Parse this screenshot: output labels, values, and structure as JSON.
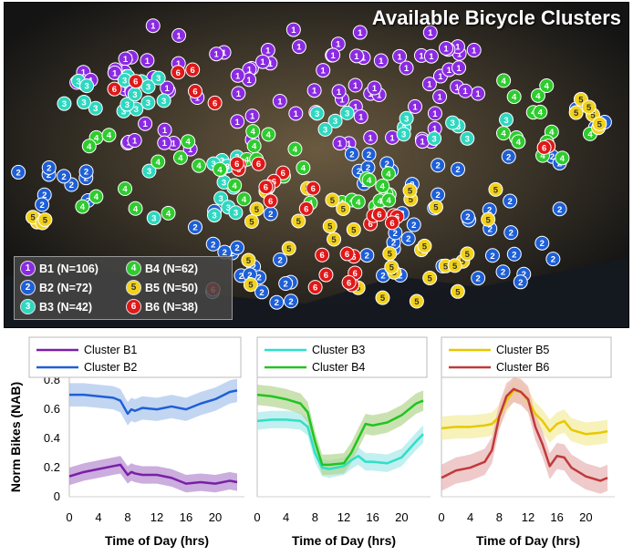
{
  "map": {
    "title": "Available Bicycle Clusters",
    "clusters": [
      {
        "id": "1",
        "label": "B1 (N=106)",
        "color": "#8a2be2"
      },
      {
        "id": "2",
        "label": "B2 (N=72)",
        "color": "#1e5fd6"
      },
      {
        "id": "3",
        "label": "B3 (N=42)",
        "color": "#2ed8c0"
      },
      {
        "id": "4",
        "label": "B4 (N=62)",
        "color": "#2ecc2e"
      },
      {
        "id": "5",
        "label": "B5 (N=50)",
        "color": "#f2d21c"
      },
      {
        "id": "6",
        "label": "B6 (N=38)",
        "color": "#e01818"
      }
    ]
  },
  "chart_data": [
    {
      "type": "line",
      "x": [
        0,
        2,
        4,
        6,
        7,
        8,
        8.5,
        9,
        10,
        12,
        14,
        16,
        18,
        20,
        22,
        23
      ],
      "xticks": [
        "0",
        "4",
        "8",
        "12",
        "16",
        "20"
      ],
      "xlabel": "Time of Day (hrs)",
      "ylabel": "Norm Bikes (NAB)",
      "yticks": [
        "0",
        "0.2",
        "0.4",
        "0.6",
        "0.8"
      ],
      "ylim": [
        0,
        0.82
      ],
      "series": [
        {
          "name": "Cluster B1",
          "color": "#7a1fa8",
          "band": "#b58ad0",
          "values": [
            0.14,
            0.17,
            0.19,
            0.21,
            0.22,
            0.15,
            0.17,
            0.16,
            0.15,
            0.15,
            0.13,
            0.09,
            0.1,
            0.09,
            0.11,
            0.1
          ],
          "spread": 0.06
        },
        {
          "name": "Cluster B2",
          "color": "#1f5fd6",
          "band": "#a8c4ec",
          "values": [
            0.7,
            0.7,
            0.69,
            0.68,
            0.66,
            0.57,
            0.6,
            0.59,
            0.61,
            0.6,
            0.62,
            0.6,
            0.64,
            0.67,
            0.72,
            0.73
          ],
          "spread": 0.08
        }
      ]
    },
    {
      "type": "line",
      "x": [
        0,
        2,
        4,
        6,
        7,
        8,
        9,
        10,
        12,
        13,
        14,
        15,
        16,
        18,
        20,
        22,
        23
      ],
      "xticks": [
        "0",
        "4",
        "8",
        "12",
        "16",
        "20"
      ],
      "xlabel": "Time of Day (hrs)",
      "ylim": [
        0,
        0.82
      ],
      "series": [
        {
          "name": "Cluster B3",
          "color": "#2ee0c8",
          "band": "#a8e8e8",
          "values": [
            0.52,
            0.53,
            0.53,
            0.52,
            0.48,
            0.3,
            0.2,
            0.19,
            0.21,
            0.25,
            0.28,
            0.24,
            0.24,
            0.23,
            0.27,
            0.38,
            0.43
          ],
          "spread": 0.06
        },
        {
          "name": "Cluster B4",
          "color": "#22c422",
          "band": "#b4d690",
          "values": [
            0.7,
            0.69,
            0.67,
            0.64,
            0.58,
            0.38,
            0.22,
            0.22,
            0.23,
            0.3,
            0.4,
            0.5,
            0.49,
            0.51,
            0.56,
            0.64,
            0.66
          ],
          "spread": 0.07
        }
      ]
    },
    {
      "type": "line",
      "x": [
        0,
        2,
        4,
        6,
        7,
        8,
        9,
        10,
        11,
        12,
        13,
        14,
        15,
        16,
        17,
        18,
        20,
        22,
        23
      ],
      "xticks": [
        "0",
        "4",
        "8",
        "12",
        "16",
        "20"
      ],
      "xlabel": "Time of Day (hrs)",
      "ylim": [
        0,
        0.82
      ],
      "series": [
        {
          "name": "Cluster B5",
          "color": "#e8c800",
          "band": "#f4ec9c",
          "values": [
            0.47,
            0.48,
            0.48,
            0.49,
            0.5,
            0.55,
            0.66,
            0.73,
            0.72,
            0.66,
            0.57,
            0.52,
            0.45,
            0.5,
            0.52,
            0.46,
            0.43,
            0.44,
            0.45
          ],
          "spread": 0.08
        },
        {
          "name": "Cluster B6",
          "color": "#c03a3a",
          "band": "#e8b4b4",
          "values": [
            0.13,
            0.18,
            0.2,
            0.24,
            0.32,
            0.55,
            0.69,
            0.74,
            0.72,
            0.67,
            0.48,
            0.36,
            0.21,
            0.28,
            0.27,
            0.2,
            0.14,
            0.11,
            0.13
          ],
          "spread": 0.09
        }
      ]
    }
  ]
}
